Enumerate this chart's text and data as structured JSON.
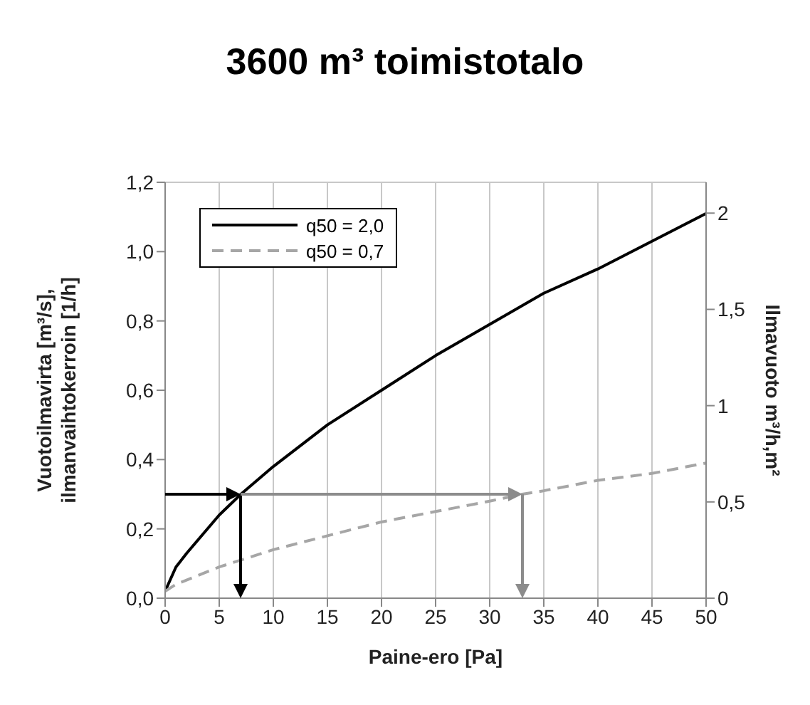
{
  "chart_data": {
    "type": "line",
    "title": "3600 m³ toimistotalo",
    "xlabel": "Paine-ero [Pa]",
    "ylabel": "Vuotoilmavirta [m³/s], ilmanvaihtokerroin [1/h]",
    "y2label": "Ilmavuoto m³/h,m²",
    "series": [
      {
        "name": "q50 = 2,0",
        "color": "#000000",
        "line_style": "solid",
        "x": [
          0,
          1,
          2,
          5,
          7,
          10,
          15,
          20,
          25,
          30,
          35,
          40,
          45,
          50
        ],
        "values": [
          0.02,
          0.09,
          0.13,
          0.24,
          0.3,
          0.38,
          0.5,
          0.6,
          0.7,
          0.79,
          0.88,
          0.95,
          1.03,
          1.11
        ]
      },
      {
        "name": "q50 = 0,7",
        "color": "#a6a6a6",
        "line_style": "dashed",
        "x": [
          0,
          1,
          5,
          10,
          15,
          20,
          25,
          30,
          33,
          35,
          40,
          45,
          50
        ],
        "values": [
          0.02,
          0.04,
          0.09,
          0.14,
          0.18,
          0.22,
          0.25,
          0.28,
          0.3,
          0.31,
          0.34,
          0.36,
          0.39
        ]
      }
    ],
    "xlim": [
      0,
      50
    ],
    "xticks": [
      0,
      5,
      10,
      15,
      20,
      25,
      30,
      35,
      40,
      45,
      50
    ],
    "ylim": [
      0,
      1.2
    ],
    "yticks": [
      {
        "value": 0,
        "label": "0,0"
      },
      {
        "value": 0.2,
        "label": "0,2"
      },
      {
        "value": 0.4,
        "label": "0,4"
      },
      {
        "value": 0.6,
        "label": "0,6"
      },
      {
        "value": 0.8,
        "label": "0,8"
      },
      {
        "value": 1.0,
        "label": "1,0"
      },
      {
        "value": 1.2,
        "label": "1,2"
      }
    ],
    "y2lim": [
      0,
      2.16
    ],
    "y2ticks": [
      0,
      {
        "value": 0.5,
        "label": "0,5"
      },
      1,
      {
        "value": 1.5,
        "label": "1,5"
      },
      2
    ],
    "grid": true,
    "legend": "top left",
    "marker": "none"
  }
}
